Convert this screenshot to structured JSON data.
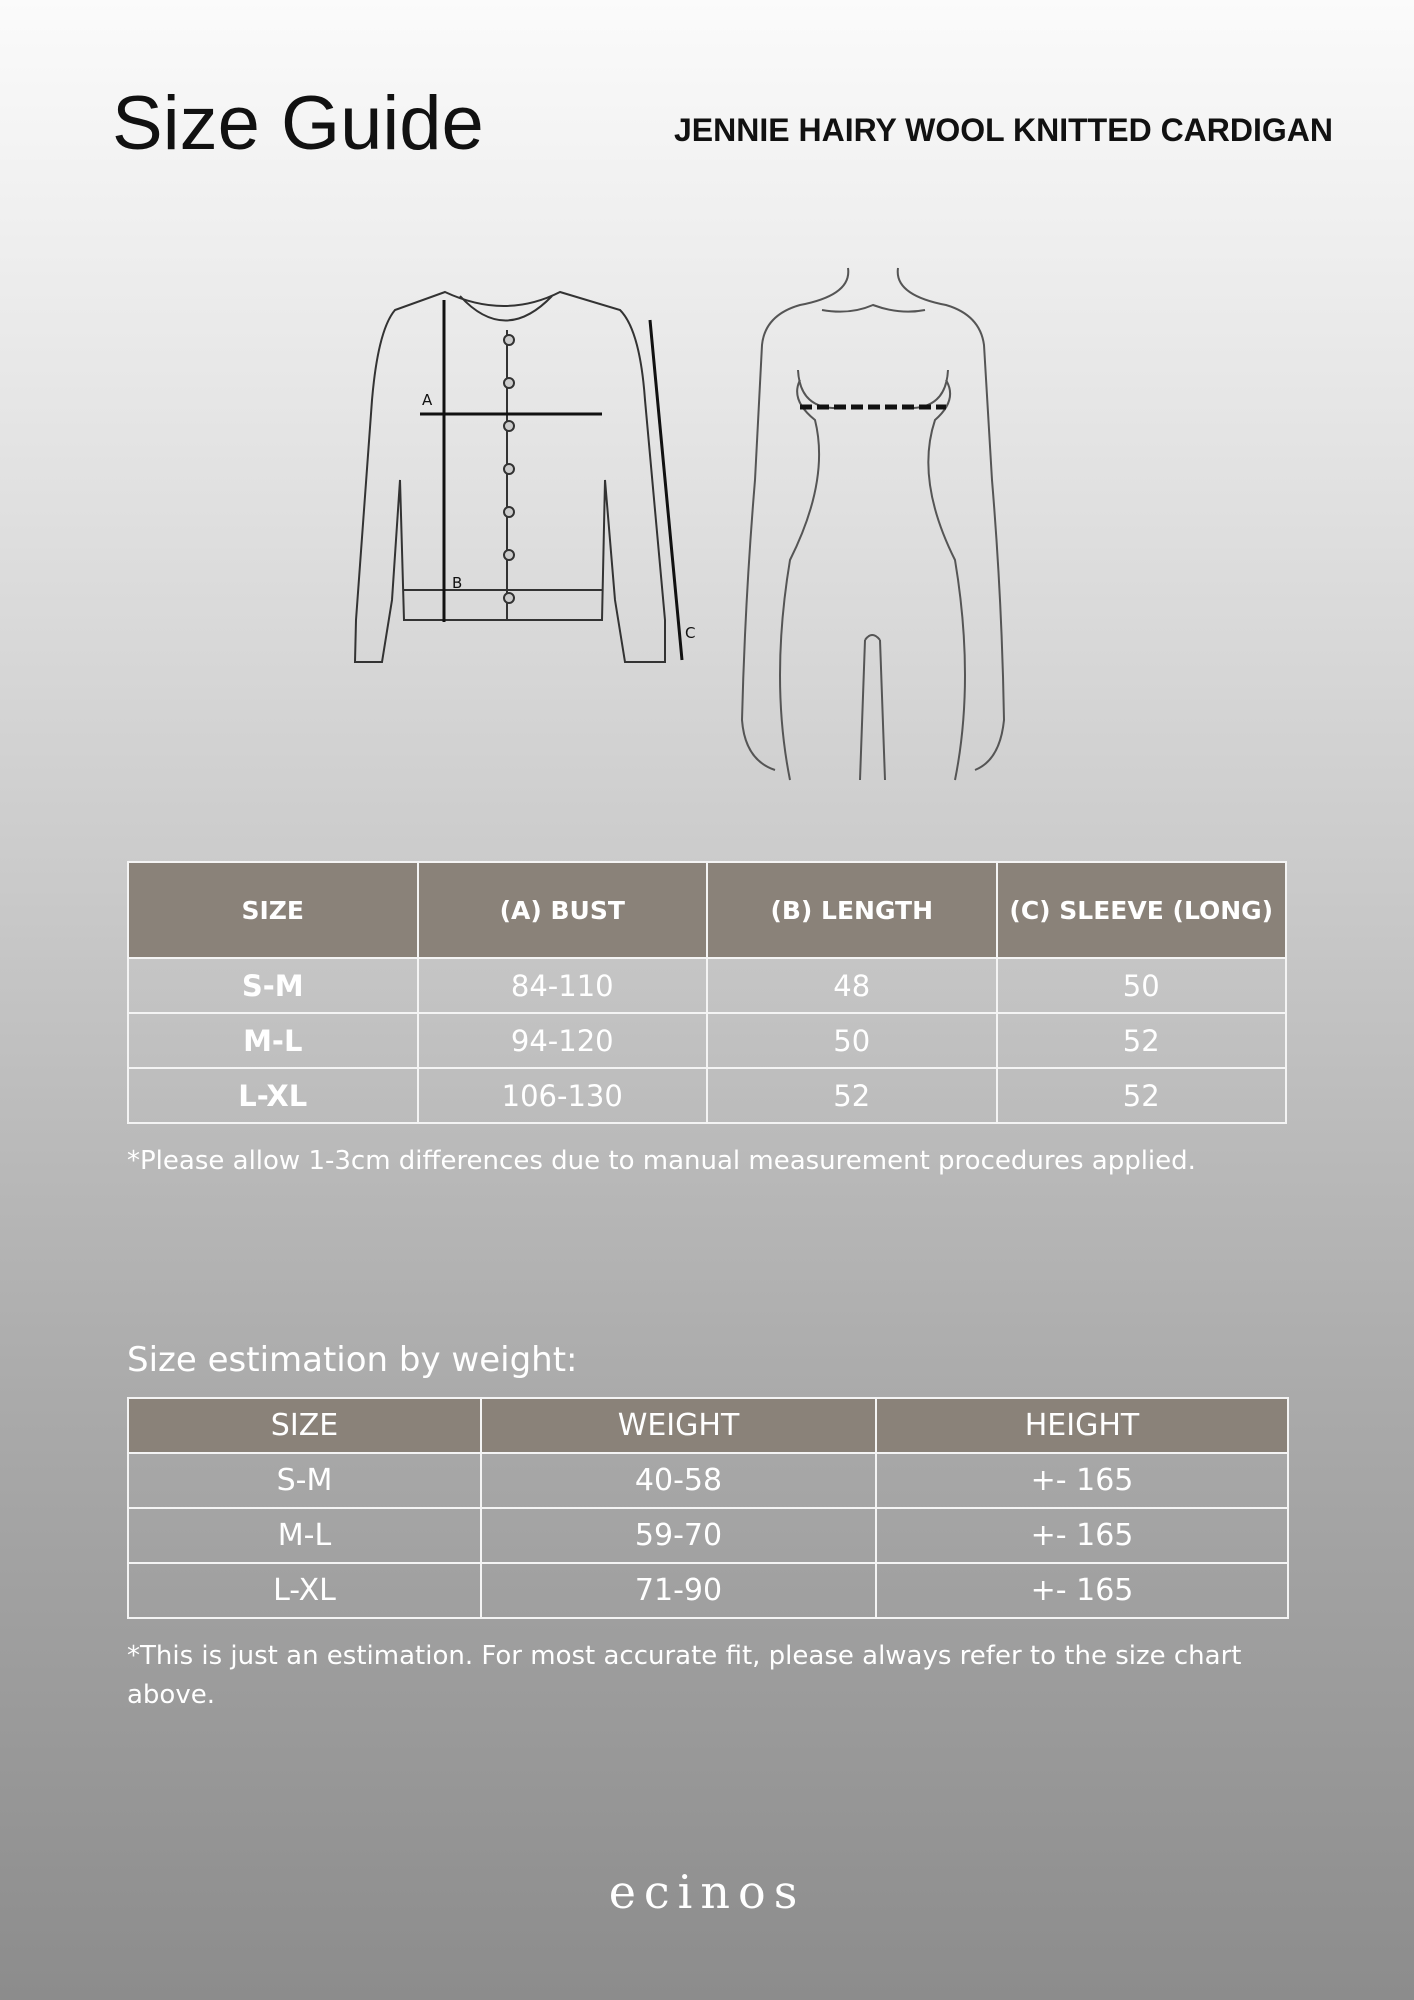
{
  "header": {
    "title": "Size Guide",
    "product_name": "JENNIE HAIRY WOOL KNITTED CARDIGAN"
  },
  "illustration": {
    "labels": [
      "A",
      "B",
      "C"
    ],
    "icons": [
      "cardigan-diagram",
      "body-diagram"
    ]
  },
  "size_chart": {
    "columns": [
      "SIZE",
      "(A) BUST",
      "(B) LENGTH",
      "(C) SLEEVE (LONG)"
    ],
    "rows": [
      [
        "S-M",
        "84-110",
        "48",
        "50"
      ],
      [
        "M-L",
        "94-120",
        "50",
        "52"
      ],
      [
        "L-XL",
        "106-130",
        "52",
        "52"
      ]
    ],
    "note": "*Please allow 1-3cm differences due to manual measurement procedures applied."
  },
  "weight_chart": {
    "heading": "Size estimation by weight:",
    "columns": [
      "SIZE",
      "WEIGHT",
      "HEIGHT"
    ],
    "rows": [
      [
        "S-M",
        "40-58",
        "+- 165"
      ],
      [
        "M-L",
        "59-70",
        "+- 165"
      ],
      [
        "L-XL",
        "71-90",
        "+- 165"
      ]
    ],
    "note": "*This is just an estimation. For most accurate fit, please always refer to the size chart above."
  },
  "footer": {
    "brand": "ecinos"
  },
  "colors": {
    "header_fill": "#8a8279",
    "text": "#ffffff",
    "title": "#111111"
  }
}
